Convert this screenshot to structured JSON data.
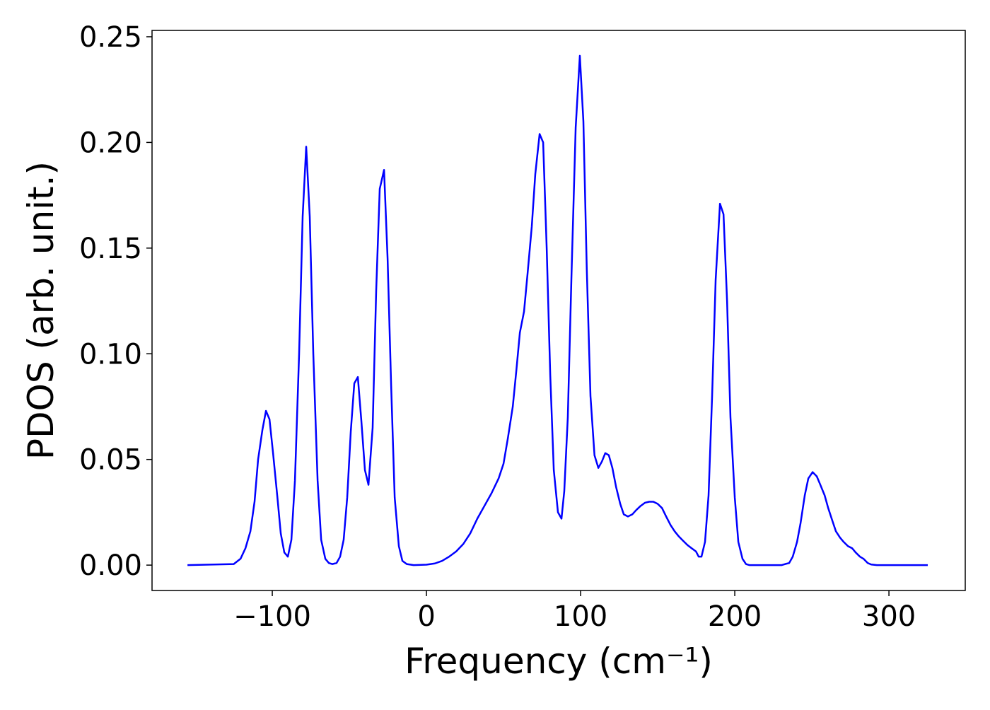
{
  "chart_data": {
    "type": "line",
    "x_label": "Frequency (cm⁻¹)",
    "y_label": "PDOS (arb. unit.)",
    "color": "#0000ff",
    "x": [
      -155,
      -125,
      -120.6,
      -117.4,
      -114.2,
      -111.5,
      -109.2,
      -106.4,
      -104.1,
      -101.8,
      -99.5,
      -96.8,
      -94.5,
      -92.2,
      -89.9,
      -87.6,
      -85.3,
      -82.6,
      -80.3,
      -78,
      -75.7,
      -73.4,
      -70.6,
      -68.3,
      -65.6,
      -63.3,
      -61,
      -58.3,
      -56,
      -53.7,
      -51.4,
      -49.1,
      -46.8,
      -44.5,
      -42.2,
      -39.9,
      -37.6,
      -34.9,
      -32.6,
      -30.3,
      -27.5,
      -25.2,
      -22.9,
      -20.6,
      -17.9,
      -15.6,
      -12.8,
      -8.3,
      0,
      5.5,
      10.1,
      14.7,
      19.3,
      23.9,
      28.4,
      33,
      37.6,
      42.2,
      46.8,
      50,
      52.8,
      56,
      58.3,
      60.6,
      63.3,
      65.6,
      68.3,
      70.6,
      73.4,
      75.7,
      78,
      80.3,
      82.6,
      85.3,
      87.6,
      89.4,
      91.7,
      94,
      96.8,
      99.5,
      101.8,
      104,
      106.4,
      109,
      111.5,
      113.8,
      116,
      118.3,
      120.6,
      123,
      125.7,
      128,
      130.7,
      133.5,
      136,
      138.9,
      141.7,
      144.5,
      147.2,
      150,
      152.8,
      155.5,
      158.3,
      161,
      163.8,
      166.5,
      169.3,
      172,
      174.8,
      176.6,
      178.4,
      180.7,
      183,
      185.3,
      187.6,
      190.4,
      192.7,
      195,
      197.2,
      200,
      202.3,
      205,
      207.3,
      209.6,
      230.3,
      232.6,
      235.3,
      237.6,
      240.4,
      242.7,
      245.4,
      247.7,
      250.5,
      253.2,
      255.5,
      258.3,
      260.6,
      263.3,
      265.6,
      268.3,
      270.6,
      273.4,
      276.1,
      278.4,
      281.2,
      283.5,
      286.2,
      288.5,
      292.2,
      325.2
    ],
    "values": [
      0,
      0.0005,
      0.003,
      0.008,
      0.016,
      0.03,
      0.05,
      0.064,
      0.073,
      0.069,
      0.053,
      0.033,
      0.015,
      0.006,
      0.004,
      0.012,
      0.04,
      0.1,
      0.165,
      0.198,
      0.165,
      0.1,
      0.04,
      0.012,
      0.003,
      0.001,
      0.0005,
      0.001,
      0.004,
      0.012,
      0.032,
      0.063,
      0.086,
      0.089,
      0.068,
      0.045,
      0.038,
      0.065,
      0.13,
      0.178,
      0.187,
      0.145,
      0.085,
      0.032,
      0.009,
      0.002,
      0.0005,
      0,
      0.0002,
      0.0008,
      0.002,
      0.004,
      0.0065,
      0.01,
      0.015,
      0.022,
      0.028,
      0.034,
      0.041,
      0.048,
      0.06,
      0.075,
      0.092,
      0.11,
      0.12,
      0.138,
      0.16,
      0.185,
      0.204,
      0.2,
      0.15,
      0.09,
      0.045,
      0.025,
      0.022,
      0.035,
      0.07,
      0.135,
      0.207,
      0.241,
      0.21,
      0.14,
      0.08,
      0.052,
      0.046,
      0.049,
      0.053,
      0.052,
      0.046,
      0.037,
      0.029,
      0.024,
      0.023,
      0.024,
      0.026,
      0.028,
      0.0295,
      0.03,
      0.03,
      0.029,
      0.027,
      0.023,
      0.019,
      0.016,
      0.0135,
      0.0115,
      0.0095,
      0.008,
      0.0065,
      0.004,
      0.004,
      0.011,
      0.033,
      0.08,
      0.135,
      0.171,
      0.166,
      0.125,
      0.07,
      0.032,
      0.011,
      0.003,
      0.0005,
      0,
      0,
      0.0005,
      0.001,
      0.004,
      0.011,
      0.02,
      0.033,
      0.041,
      0.044,
      0.042,
      0.038,
      0.033,
      0.027,
      0.021,
      0.016,
      0.013,
      0.011,
      0.009,
      0.008,
      0.006,
      0.004,
      0.003,
      0.001,
      0.0003,
      0,
      0
    ],
    "xlim": [
      -178,
      349.5
    ],
    "ylim": [
      -0.012,
      0.253
    ],
    "xticks": [
      {
        "value": -100,
        "label": "−100"
      },
      0,
      100,
      200,
      300
    ],
    "yticks": [
      {
        "value": 0,
        "label": "0.00"
      },
      {
        "value": 0.05,
        "label": "0.05"
      },
      {
        "value": 0.1,
        "label": "0.10"
      },
      {
        "value": 0.15,
        "label": "0.15"
      },
      {
        "value": 0.2,
        "label": "0.20"
      },
      {
        "value": 0.25,
        "label": "0.25"
      }
    ]
  }
}
